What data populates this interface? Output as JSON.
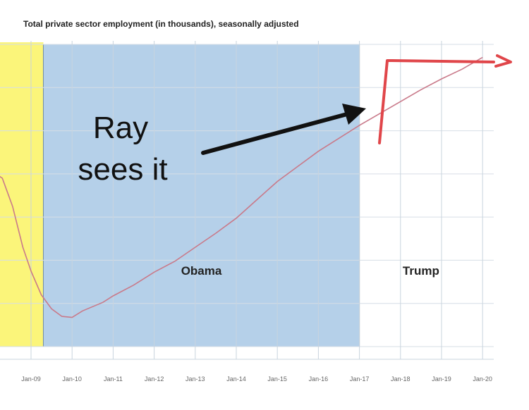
{
  "chart_data": {
    "type": "line",
    "title": "Total private sector employment (in thousands), seasonally adjusted",
    "xlabel": "",
    "ylabel": "",
    "x_ticks": [
      "Jan-09",
      "Jan-10",
      "Jan-11",
      "Jan-12",
      "Jan-13",
      "Jan-14",
      "Jan-15",
      "Jan-16",
      "Jan-17",
      "Jan-18",
      "Jan-19",
      "Jan-20"
    ],
    "grid": true,
    "y_tick_labels_visible": false,
    "regions": [
      {
        "label": "",
        "color": "#fbf57a",
        "start": 2008.0,
        "end": 2009.3
      },
      {
        "label": "Obama",
        "color": "#b5d0e9",
        "start": 2009.3,
        "end": 2017.0
      },
      {
        "label": "Trump",
        "color": "#ffffff",
        "start": 2017.0,
        "end": 2020.0
      }
    ],
    "series": [
      {
        "name": "",
        "color": "#c97a8a",
        "points": [
          [
            2008.0,
            112.2
          ],
          [
            2008.3,
            111.8
          ],
          [
            2008.55,
            110.5
          ],
          [
            2008.8,
            108.6
          ],
          [
            2009.0,
            107.5
          ],
          [
            2009.25,
            106.4
          ],
          [
            2009.5,
            105.75
          ],
          [
            2009.75,
            105.4
          ],
          [
            2010.0,
            105.35
          ],
          [
            2010.25,
            105.65
          ],
          [
            2010.5,
            105.85
          ],
          [
            2010.75,
            106.05
          ],
          [
            2011.0,
            106.35
          ],
          [
            2011.5,
            106.85
          ],
          [
            2012.0,
            107.45
          ],
          [
            2012.5,
            107.95
          ],
          [
            2013.0,
            108.6
          ],
          [
            2013.5,
            109.25
          ],
          [
            2014.0,
            109.95
          ],
          [
            2014.5,
            110.8
          ],
          [
            2015.0,
            111.65
          ],
          [
            2015.5,
            112.35
          ],
          [
            2016.0,
            113.05
          ],
          [
            2016.5,
            113.65
          ],
          [
            2017.0,
            114.25
          ],
          [
            2017.5,
            114.8
          ],
          [
            2018.0,
            115.35
          ],
          [
            2018.5,
            115.9
          ],
          [
            2019.0,
            116.4
          ],
          [
            2019.5,
            116.85
          ],
          [
            2020.0,
            117.4
          ]
        ]
      }
    ],
    "x_range": [
      2008.0,
      2020.0
    ],
    "y_range": [
      104.0,
      118.0
    ],
    "annotations": [
      {
        "text_lines": [
          "Ray",
          "sees it"
        ],
        "kind": "text-with-arrow"
      }
    ]
  }
}
